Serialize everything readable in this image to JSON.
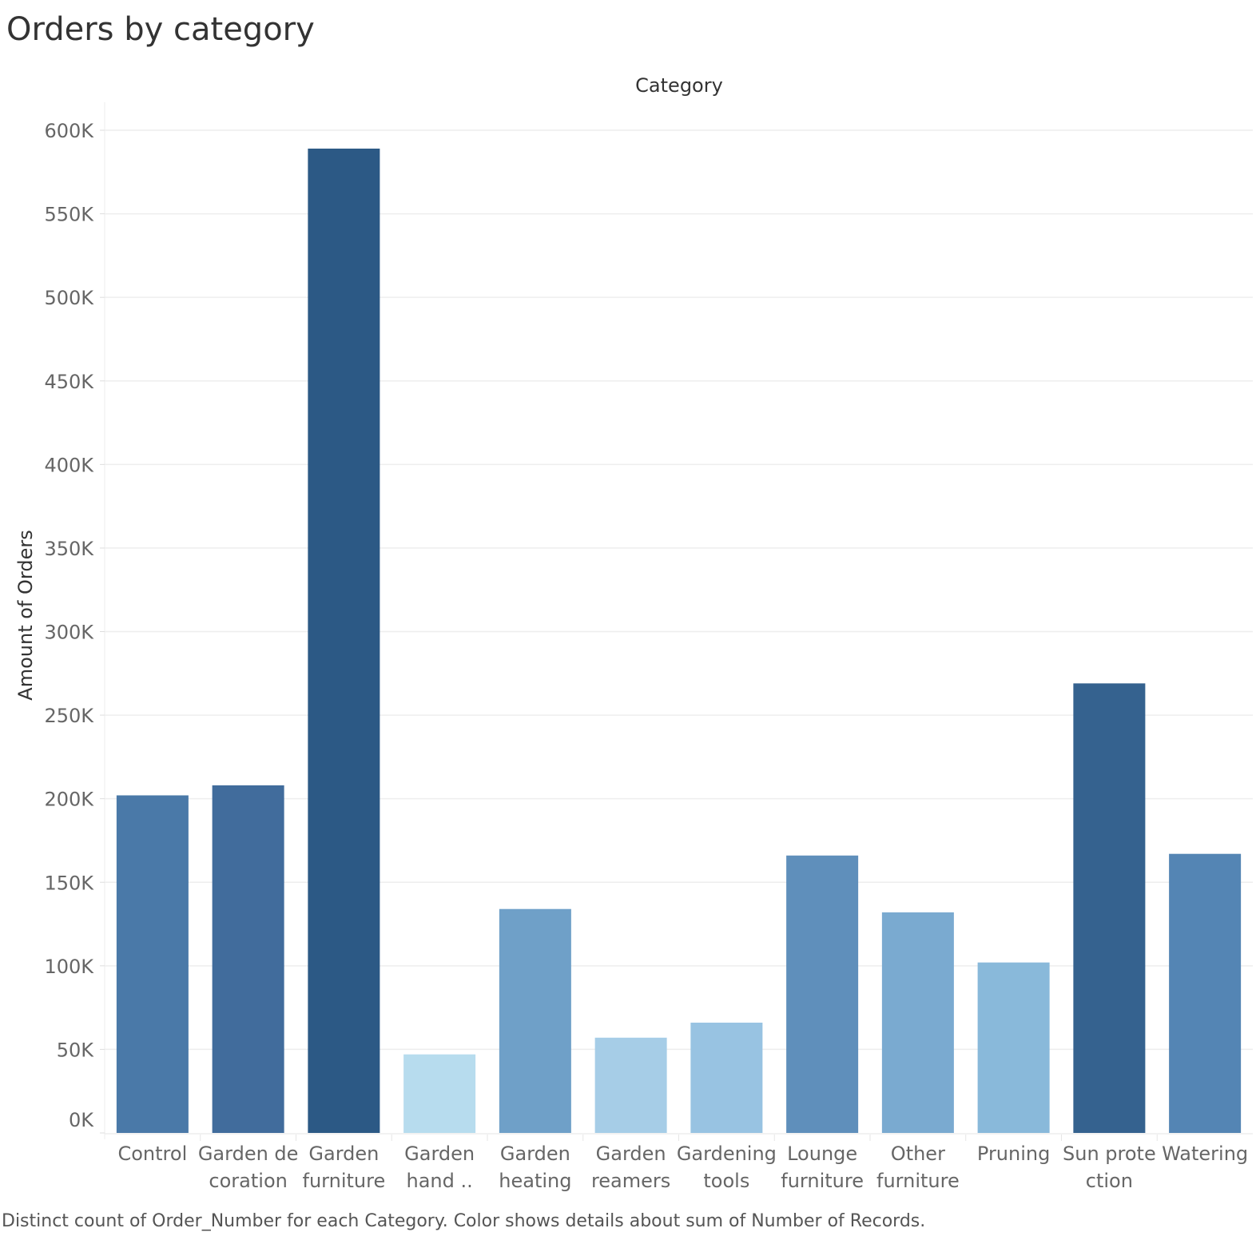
{
  "title": "Orders by category",
  "caption": "Distinct count of Order_Number for each Category.  Color shows details about sum of Number of Records.",
  "chart_data": {
    "type": "bar",
    "title": "Orders by category",
    "xlabel": "Category",
    "ylabel": "Amount of Orders",
    "ylim": [
      0,
      600000
    ],
    "y_ticks": [
      "0K",
      "50K",
      "100K",
      "150K",
      "200K",
      "250K",
      "300K",
      "350K",
      "400K",
      "450K",
      "500K",
      "550K",
      "600K"
    ],
    "y_tick_values": [
      0,
      50000,
      100000,
      150000,
      200000,
      250000,
      300000,
      350000,
      400000,
      450000,
      500000,
      550000,
      600000
    ],
    "grid": true,
    "categories": [
      [
        "Control"
      ],
      [
        "Garden de",
        "coration"
      ],
      [
        "Garden",
        "furniture"
      ],
      [
        "Garden",
        "hand .."
      ],
      [
        "Garden",
        "heating"
      ],
      [
        "Garden",
        "reamers"
      ],
      [
        "Gardening",
        "tools"
      ],
      [
        "Lounge",
        "furniture"
      ],
      [
        "Other",
        "furniture"
      ],
      [
        "Pruning"
      ],
      [
        "Sun prote",
        "ction"
      ],
      [
        "Watering"
      ]
    ],
    "values": [
      202000,
      208000,
      589000,
      47000,
      134000,
      57000,
      66000,
      166000,
      132000,
      102000,
      269000,
      167000
    ],
    "colors": [
      "#4a79a8",
      "#416c9c",
      "#2c5985",
      "#b7dcee",
      "#6fa0c8",
      "#a6cde7",
      "#98c3e2",
      "#5f8fbb",
      "#7aaad0",
      "#89b9da",
      "#35628f",
      "#5485b4"
    ]
  }
}
